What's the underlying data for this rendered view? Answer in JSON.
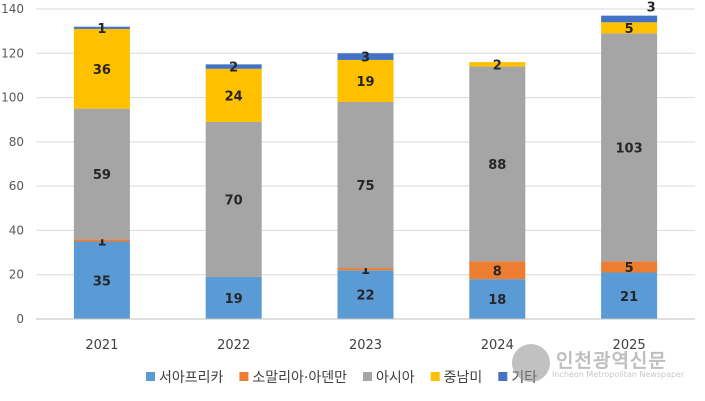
{
  "chart_data": {
    "type": "bar",
    "stacked": true,
    "categories": [
      "2021",
      "2022",
      "2023",
      "2024",
      "2025"
    ],
    "series": [
      {
        "name": "서아프리카",
        "color": "#5B9BD5",
        "values": [
          35,
          19,
          22,
          18,
          21
        ]
      },
      {
        "name": "소말리아·아덴만",
        "color": "#ED7D31",
        "values": [
          1,
          0,
          1,
          8,
          5
        ]
      },
      {
        "name": "아시아",
        "color": "#A5A5A5",
        "values": [
          59,
          70,
          75,
          88,
          103
        ]
      },
      {
        "name": "중남미",
        "color": "#FFC000",
        "values": [
          36,
          24,
          19,
          2,
          5
        ]
      },
      {
        "name": "기타",
        "color": "#4472C4",
        "values": [
          1,
          2,
          3,
          0,
          3
        ]
      }
    ],
    "title": "",
    "xlabel": "",
    "ylabel": "",
    "ylim": [
      0,
      140
    ],
    "yticks": [
      0,
      20,
      40,
      60,
      80,
      100,
      120,
      140
    ],
    "grid": true,
    "legend": "bottom"
  },
  "watermark": {
    "text": "인천광역신문",
    "subtext": "Incheon Metropolitan Newspaper"
  }
}
